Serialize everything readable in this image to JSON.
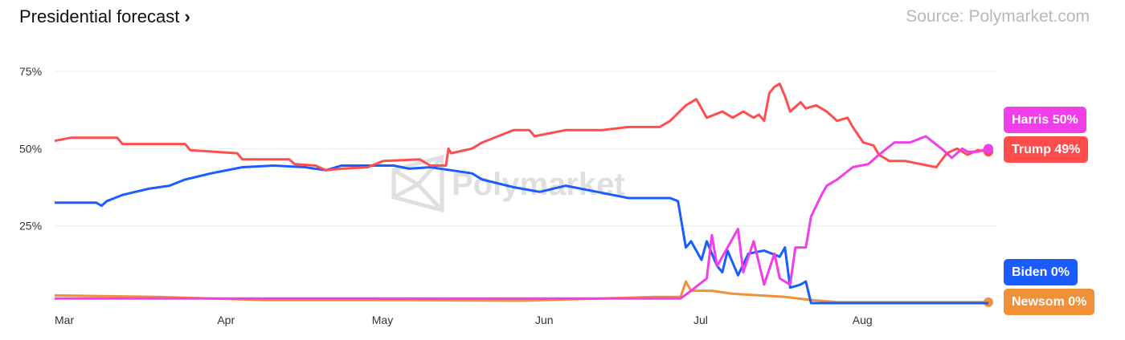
{
  "header": {
    "title": "Presidential forecast",
    "chevron": "›",
    "source": "Source: Polymarket.com"
  },
  "watermark": "Polymarket",
  "chart_data": {
    "type": "line",
    "title": "Presidential forecast",
    "x_unit": "day index from Mar 1",
    "x_ticks": [
      {
        "day": 0,
        "label": "Mar"
      },
      {
        "day": 31,
        "label": "Apr"
      },
      {
        "day": 61,
        "label": "May"
      },
      {
        "day": 92,
        "label": "Jun"
      },
      {
        "day": 122,
        "label": "Jul"
      },
      {
        "day": 153,
        "label": "Aug"
      }
    ],
    "y_ticks": [
      {
        "value": 25,
        "label": "25%"
      },
      {
        "value": 50,
        "label": "50%"
      },
      {
        "value": 75,
        "label": "75%"
      }
    ],
    "xlim": [
      0,
      179
    ],
    "ylim": [
      0,
      75
    ],
    "grid": true,
    "legend": "right",
    "series": [
      {
        "name": "Trump",
        "color": "#ff4d4d",
        "label": "Trump 49%",
        "points": [
          [
            0,
            52.5
          ],
          [
            3,
            53.5
          ],
          [
            12,
            53.5
          ],
          [
            13,
            51.5
          ],
          [
            25,
            51.5
          ],
          [
            26,
            49.5
          ],
          [
            35,
            48.5
          ],
          [
            36,
            46.5
          ],
          [
            45,
            46.5
          ],
          [
            46,
            45
          ],
          [
            50,
            44.5
          ],
          [
            52,
            43
          ],
          [
            55,
            43.5
          ],
          [
            60,
            44
          ],
          [
            63,
            46
          ],
          [
            70,
            46.5
          ],
          [
            72,
            44.5
          ],
          [
            75,
            44.5
          ],
          [
            75.5,
            50
          ],
          [
            76,
            48.5
          ],
          [
            80,
            50
          ],
          [
            82,
            52
          ],
          [
            85,
            54
          ],
          [
            88,
            56
          ],
          [
            91,
            56
          ],
          [
            92,
            54
          ],
          [
            98,
            56
          ],
          [
            105,
            56
          ],
          [
            110,
            57
          ],
          [
            116,
            57
          ],
          [
            118,
            59
          ],
          [
            121,
            64
          ],
          [
            123,
            66
          ],
          [
            124,
            63
          ],
          [
            125,
            60
          ],
          [
            128,
            62
          ],
          [
            130,
            60
          ],
          [
            132,
            62
          ],
          [
            134,
            60
          ],
          [
            135,
            61
          ],
          [
            136,
            59
          ],
          [
            137,
            68
          ],
          [
            138,
            70
          ],
          [
            139,
            71
          ],
          [
            140,
            67
          ],
          [
            141,
            62
          ],
          [
            143,
            65
          ],
          [
            144,
            63
          ],
          [
            146,
            64
          ],
          [
            148,
            62
          ],
          [
            150,
            59
          ],
          [
            152,
            60
          ],
          [
            153,
            57
          ],
          [
            155,
            52
          ],
          [
            157,
            51
          ],
          [
            158,
            48
          ],
          [
            160,
            46
          ],
          [
            163,
            46
          ],
          [
            166,
            45
          ],
          [
            169,
            44
          ],
          [
            171,
            48.5
          ],
          [
            173,
            50
          ],
          [
            175,
            48
          ],
          [
            177,
            49.5
          ],
          [
            179,
            49
          ]
        ]
      },
      {
        "name": "Harris",
        "color": "#f03ee8",
        "label": "Harris 50%",
        "points": [
          [
            0,
            1.5
          ],
          [
            40,
            1.5
          ],
          [
            80,
            1.5
          ],
          [
            110,
            1.5
          ],
          [
            120,
            1.5
          ],
          [
            122,
            4
          ],
          [
            125,
            8
          ],
          [
            126,
            22
          ],
          [
            127,
            12
          ],
          [
            129,
            18
          ],
          [
            131,
            24
          ],
          [
            132,
            10
          ],
          [
            134,
            20
          ],
          [
            136,
            6
          ],
          [
            138,
            16
          ],
          [
            139,
            8
          ],
          [
            141,
            6
          ],
          [
            142,
            18
          ],
          [
            144,
            18
          ],
          [
            145,
            28
          ],
          [
            147,
            35
          ],
          [
            148,
            38
          ],
          [
            150,
            40
          ],
          [
            153,
            44
          ],
          [
            156,
            45
          ],
          [
            158,
            48
          ],
          [
            161,
            52
          ],
          [
            164,
            52
          ],
          [
            167,
            54
          ],
          [
            170,
            50
          ],
          [
            172,
            47
          ],
          [
            174,
            50
          ],
          [
            175,
            49
          ],
          [
            177,
            49
          ],
          [
            179,
            50
          ]
        ]
      },
      {
        "name": "Biden",
        "color": "#1a5cff",
        "label": "Biden 0%",
        "points": [
          [
            0,
            32.5
          ],
          [
            8,
            32.5
          ],
          [
            9,
            31.5
          ],
          [
            10,
            33
          ],
          [
            13,
            35
          ],
          [
            18,
            37
          ],
          [
            22,
            38
          ],
          [
            25,
            40
          ],
          [
            30,
            42
          ],
          [
            36,
            44
          ],
          [
            42,
            44.5
          ],
          [
            48,
            44
          ],
          [
            52,
            43
          ],
          [
            55,
            44.5
          ],
          [
            65,
            44.5
          ],
          [
            68,
            43.5
          ],
          [
            72,
            44
          ],
          [
            76,
            43
          ],
          [
            80,
            42
          ],
          [
            82,
            40
          ],
          [
            88,
            37.5
          ],
          [
            93,
            36
          ],
          [
            98,
            38
          ],
          [
            104,
            36
          ],
          [
            110,
            34
          ],
          [
            118,
            34
          ],
          [
            119.5,
            33
          ],
          [
            121,
            18
          ],
          [
            122,
            20
          ],
          [
            124,
            14
          ],
          [
            125,
            20
          ],
          [
            127,
            12
          ],
          [
            128,
            10
          ],
          [
            129,
            17
          ],
          [
            131,
            9
          ],
          [
            133,
            16
          ],
          [
            136,
            17
          ],
          [
            139,
            15
          ],
          [
            140,
            18
          ],
          [
            141,
            5
          ],
          [
            143,
            6
          ],
          [
            144,
            7
          ],
          [
            145,
            0
          ],
          [
            179,
            0
          ]
        ]
      },
      {
        "name": "Newsom",
        "color": "#f0913a",
        "label": "Newsom 0%",
        "points": [
          [
            0,
            2.5
          ],
          [
            20,
            2
          ],
          [
            40,
            1
          ],
          [
            60,
            1
          ],
          [
            90,
            0.8
          ],
          [
            105,
            1.5
          ],
          [
            115,
            2
          ],
          [
            120,
            2
          ],
          [
            121,
            7
          ],
          [
            122,
            4
          ],
          [
            126,
            4
          ],
          [
            130,
            3
          ],
          [
            140,
            2
          ],
          [
            145,
            1
          ],
          [
            150,
            0.3
          ],
          [
            179,
            0.3
          ]
        ]
      }
    ]
  }
}
